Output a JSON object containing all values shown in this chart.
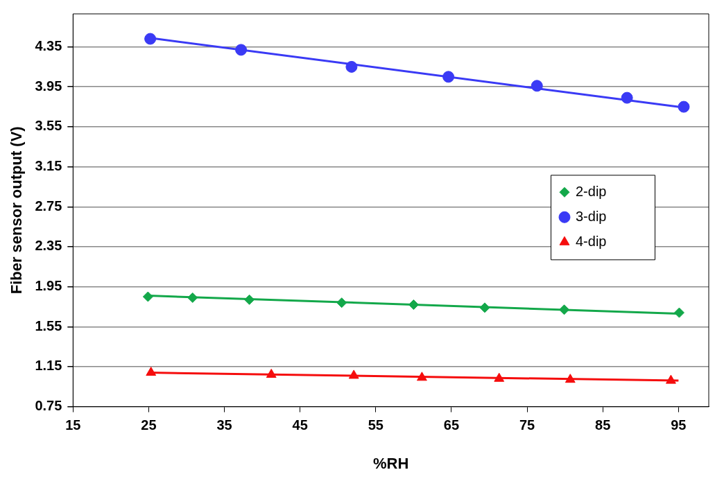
{
  "chart_data": {
    "type": "scatter",
    "xlabel": "%RH",
    "ylabel": "Fiber sensor output (V)",
    "xlim": [
      15,
      99
    ],
    "xticks": [
      15,
      25,
      35,
      45,
      55,
      65,
      75,
      85,
      95
    ],
    "ylim": [
      0.75,
      4.68
    ],
    "yticks": [
      0.75,
      1.15,
      1.55,
      1.95,
      2.35,
      2.75,
      3.15,
      3.55,
      3.95,
      4.35
    ],
    "grid": "y",
    "legend": "right",
    "series": [
      {
        "name": "2-dip",
        "marker": "diamond",
        "color": "#13a84a",
        "x": [
          24.9,
          30.8,
          38.3,
          50.5,
          60.0,
          69.4,
          79.9,
          95.1
        ],
        "values": [
          1.85,
          1.84,
          1.82,
          1.79,
          1.77,
          1.74,
          1.72,
          1.69
        ]
      },
      {
        "name": "3-dip",
        "marker": "circle",
        "color": "#3a3af5",
        "x": [
          25.2,
          37.2,
          51.8,
          64.6,
          76.3,
          88.2,
          95.7
        ],
        "values": [
          4.43,
          4.32,
          4.15,
          4.05,
          3.96,
          3.84,
          3.75
        ]
      },
      {
        "name": "4-dip",
        "marker": "triangle",
        "color": "#f50d0d",
        "x": [
          25.3,
          41.2,
          52.1,
          61.1,
          71.3,
          80.7,
          94.0
        ],
        "values": [
          1.09,
          1.07,
          1.06,
          1.04,
          1.03,
          1.02,
          1.01
        ]
      },
      {
        "type": "line",
        "marker": "none",
        "color": "#13a84a",
        "x": [
          25,
          95
        ],
        "values": [
          1.86,
          1.68
        ]
      },
      {
        "type": "line",
        "marker": "none",
        "color": "#3a3af5",
        "x": [
          25,
          96
        ],
        "values": [
          4.44,
          3.74
        ]
      },
      {
        "type": "line",
        "marker": "none",
        "color": "#f50d0d",
        "x": [
          25,
          95
        ],
        "values": [
          1.09,
          1.01
        ]
      }
    ]
  }
}
